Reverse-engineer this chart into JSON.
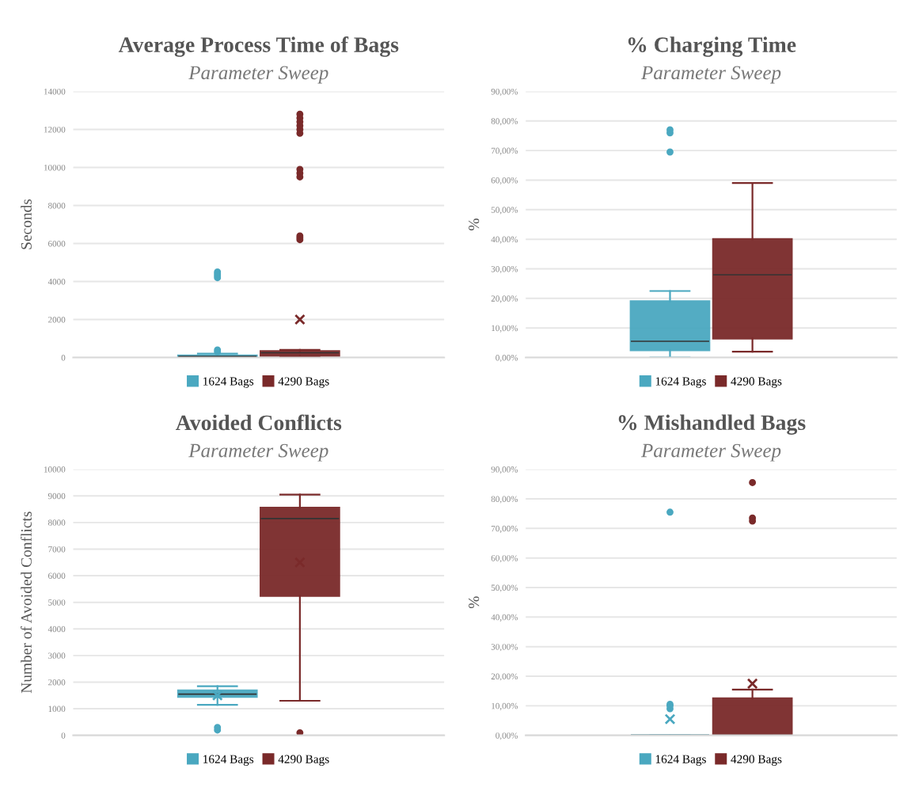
{
  "chart_data": [
    {
      "type": "box",
      "title": "Average Process Time of Bags",
      "subtitle": "Parameter Sweep",
      "ylabel": "Seconds",
      "categories": [
        null
      ],
      "tick_labels": "y",
      "grid": "y",
      "legend": "bottom",
      "ylim": [
        0,
        14000
      ],
      "yticks": [
        0,
        2000,
        4000,
        6000,
        8000,
        10000,
        12000,
        14000
      ],
      "series": [
        {
          "name": "1624 Bags",
          "color": "#4aa8c0",
          "boxes": [
            {
              "low": 0,
              "q1": 30,
              "median": 60,
              "q3": 100,
              "high": 200,
              "outliers": [
                300,
                400,
                4200,
                4300,
                4400,
                4500
              ]
            }
          ]
        },
        {
          "name": "4290 Bags",
          "color": "#7a2a2a",
          "boxes": [
            {
              "low": 50,
              "q1": 100,
              "median": 250,
              "q3": 330,
              "high": 400,
              "mean": 2000,
              "outliers": [
                6200,
                6300,
                6400,
                9500,
                9700,
                9900,
                11800,
                12000,
                12200,
                12400,
                12600,
                12800
              ]
            }
          ]
        }
      ]
    },
    {
      "type": "box",
      "title": "% Charging Time",
      "subtitle": "Parameter Sweep",
      "ylabel": "%",
      "categories": [
        null
      ],
      "tick_labels": "y",
      "grid": "y",
      "legend": "bottom",
      "ylim": [
        0,
        90
      ],
      "yticks": [
        {
          "value": 0,
          "label": "0,00%"
        },
        {
          "value": 10,
          "label": "10,00%"
        },
        {
          "value": 20,
          "label": "20,00%"
        },
        {
          "value": 30,
          "label": "30,00%"
        },
        {
          "value": 40,
          "label": "40,00%"
        },
        {
          "value": 50,
          "label": "50,00%"
        },
        {
          "value": 60,
          "label": "60,00%"
        },
        {
          "value": 70,
          "label": "70,00%"
        },
        {
          "value": 80,
          "label": "80,00%"
        },
        {
          "value": 90,
          "label": "90,00%"
        }
      ],
      "series": [
        {
          "name": "1624 Bags",
          "color": "#4aa8c0",
          "boxes": [
            {
              "low": 0,
              "q1": 2.5,
              "median": 5.5,
              "q3": 19,
              "high": 22.5,
              "outliers": [
                69.5,
                76,
                77
              ]
            }
          ]
        },
        {
          "name": "4290 Bags",
          "color": "#7a2a2a",
          "boxes": [
            {
              "low": 2,
              "q1": 6.5,
              "median": 28,
              "q3": 40,
              "high": 59
            }
          ]
        }
      ]
    },
    {
      "type": "box",
      "title": "Avoided Conflicts",
      "subtitle": "Parameter Sweep",
      "ylabel": "Number of Avoided Conflicts",
      "categories": [
        null
      ],
      "tick_labels": "y",
      "grid": "y",
      "legend": "bottom",
      "ylim": [
        0,
        10000
      ],
      "yticks": [
        0,
        1000,
        2000,
        3000,
        4000,
        5000,
        6000,
        7000,
        8000,
        9000,
        10000
      ],
      "series": [
        {
          "name": "1624 Bags",
          "color": "#4aa8c0",
          "boxes": [
            {
              "low": 1150,
              "q1": 1450,
              "median": 1550,
              "q3": 1680,
              "high": 1850,
              "mean": 1500,
              "outliers": [
                200,
                300
              ]
            }
          ]
        },
        {
          "name": "4290 Bags",
          "color": "#7a2a2a",
          "boxes": [
            {
              "low": 1300,
              "q1": 5250,
              "median": 8150,
              "q3": 8550,
              "high": 9050,
              "mean": 6500,
              "outliers": [
                100
              ]
            }
          ]
        }
      ]
    },
    {
      "type": "box",
      "title": "% Mishandled Bags",
      "subtitle": "Parameter Sweep",
      "ylabel": "%",
      "categories": [
        null
      ],
      "tick_labels": "y",
      "grid": "y",
      "legend": "bottom",
      "ylim": [
        0,
        90
      ],
      "yticks": [
        {
          "value": 0,
          "label": "0,00%"
        },
        {
          "value": 10,
          "label": "10,00%"
        },
        {
          "value": 20,
          "label": "20,00%"
        },
        {
          "value": 30,
          "label": "30,00%"
        },
        {
          "value": 40,
          "label": "40,00%"
        },
        {
          "value": 50,
          "label": "50,00%"
        },
        {
          "value": 60,
          "label": "60,00%"
        },
        {
          "value": 70,
          "label": "70,00%"
        },
        {
          "value": 80,
          "label": "80,00%"
        },
        {
          "value": 90,
          "label": "90,00%"
        }
      ],
      "series": [
        {
          "name": "1624 Bags",
          "color": "#4aa8c0",
          "boxes": [
            {
              "low": 0,
              "q1": 0,
              "median": 0,
              "q3": 0,
              "high": 0,
              "mean": 5.5,
              "outliers": [
                9,
                10,
                10.5,
                75.5
              ]
            }
          ]
        },
        {
          "name": "4290 Bags",
          "color": "#7a2a2a",
          "boxes": [
            {
              "low": 0,
              "q1": 0,
              "median": 0,
              "q3": 12.5,
              "high": 15.5,
              "mean": 17.5,
              "outliers": [
                72.5,
                73.5,
                85.5
              ]
            }
          ]
        }
      ]
    }
  ]
}
